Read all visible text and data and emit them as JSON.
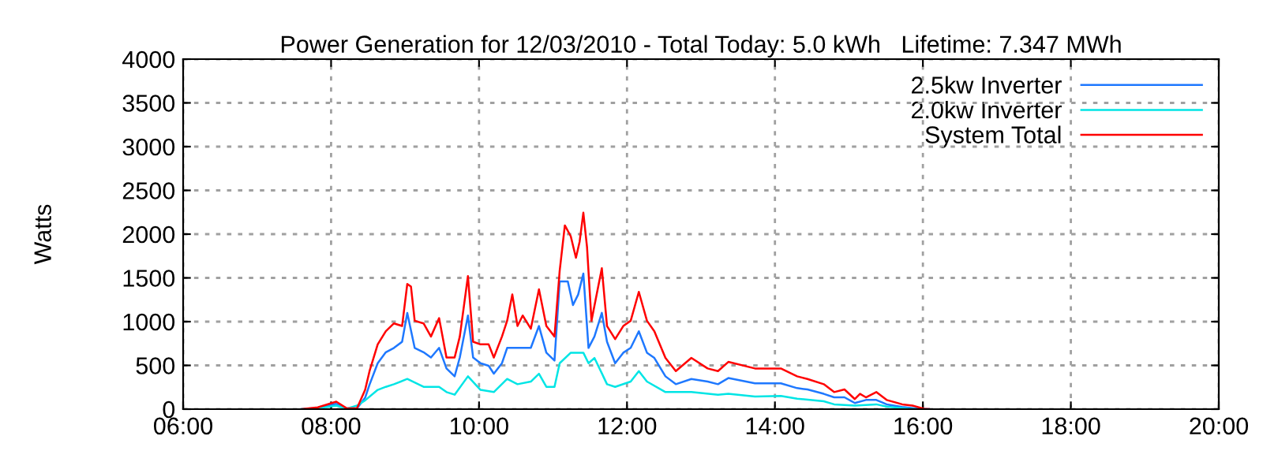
{
  "chart_data": {
    "type": "line",
    "title": "Power Generation for 12/03/2010 - Total Today: 5.0 kWh   Lifetime: 7.347 MWh",
    "ylabel": "Watts",
    "xlim": [
      6,
      20
    ],
    "xticks": [
      {
        "value": 6,
        "label": "06:00"
      },
      {
        "value": 8,
        "label": "08:00"
      },
      {
        "value": 10,
        "label": "10:00"
      },
      {
        "value": 12,
        "label": "12:00"
      },
      {
        "value": 14,
        "label": "14:00"
      },
      {
        "value": 16,
        "label": "16:00"
      },
      {
        "value": 18,
        "label": "18:00"
      },
      {
        "value": 20,
        "label": "20:00"
      }
    ],
    "ylim": [
      0,
      4000
    ],
    "yticks": [
      0,
      500,
      1000,
      1500,
      2000,
      2500,
      3000,
      3500,
      4000
    ],
    "grid": true,
    "legend": "top right",
    "marker": "none",
    "line_style": "solid",
    "series": [
      {
        "name": "2.5kw Inverter",
        "color": "#1e78ff",
        "x": [
          7.6,
          7.82,
          8.07,
          8.21,
          8.35,
          8.46,
          8.52,
          8.63,
          8.74,
          8.85,
          8.96,
          9.03,
          9.13,
          9.25,
          9.35,
          9.46,
          9.56,
          9.67,
          9.74,
          9.85,
          9.92,
          10.02,
          10.13,
          10.2,
          10.31,
          10.38,
          10.52,
          10.7,
          10.81,
          10.91,
          11.02,
          11.09,
          11.2,
          11.27,
          11.34,
          11.41,
          11.48,
          11.56,
          11.66,
          11.73,
          11.84,
          11.95,
          12.05,
          12.16,
          12.27,
          12.37,
          12.52,
          12.66,
          12.87,
          13.09,
          13.23,
          13.37,
          13.73,
          14.08,
          14.3,
          14.44,
          14.66,
          14.8,
          14.94,
          15.08,
          15.23,
          15.37,
          15.51,
          15.72,
          15.94,
          16.08
        ],
        "values": [
          0,
          15,
          60,
          10,
          10,
          130,
          280,
          525,
          650,
          700,
          770,
          1100,
          700,
          650,
          590,
          700,
          465,
          375,
          590,
          1070,
          590,
          525,
          495,
          405,
          525,
          700,
          700,
          700,
          950,
          645,
          555,
          1460,
          1460,
          1190,
          1310,
          1550,
          700,
          830,
          1100,
          770,
          525,
          645,
          700,
          890,
          645,
          585,
          375,
          285,
          345,
          315,
          285,
          355,
          295,
          295,
          240,
          225,
          175,
          135,
          135,
          70,
          105,
          105,
          55,
          25,
          5,
          0
        ]
      },
      {
        "name": "2.0kw Inverter",
        "color": "#00e5e5",
        "x": [
          7.6,
          7.82,
          8.07,
          8.21,
          8.35,
          8.46,
          8.63,
          8.74,
          8.85,
          9.03,
          9.25,
          9.46,
          9.56,
          9.67,
          9.85,
          10.02,
          10.2,
          10.38,
          10.52,
          10.7,
          10.81,
          10.91,
          11.02,
          11.09,
          11.24,
          11.41,
          11.48,
          11.56,
          11.73,
          11.84,
          12.05,
          12.16,
          12.27,
          12.52,
          12.87,
          13.23,
          13.37,
          13.73,
          14.08,
          14.3,
          14.66,
          14.8,
          15.08,
          15.37,
          15.51,
          15.8,
          15.94
        ],
        "values": [
          0,
          10,
          40,
          5,
          40,
          100,
          220,
          255,
          285,
          345,
          255,
          255,
          195,
          165,
          375,
          220,
          195,
          345,
          285,
          315,
          405,
          255,
          255,
          525,
          645,
          645,
          525,
          585,
          285,
          255,
          315,
          435,
          315,
          195,
          195,
          165,
          175,
          145,
          150,
          120,
          90,
          55,
          40,
          55,
          30,
          5,
          0
        ]
      },
      {
        "name": "System Total",
        "color": "#ff0000",
        "x": [
          7.6,
          7.82,
          8.07,
          8.21,
          8.35,
          8.46,
          8.52,
          8.63,
          8.74,
          8.85,
          8.96,
          9.03,
          9.08,
          9.13,
          9.25,
          9.35,
          9.46,
          9.56,
          9.67,
          9.74,
          9.85,
          9.92,
          10.02,
          10.13,
          10.2,
          10.31,
          10.38,
          10.45,
          10.52,
          10.59,
          10.7,
          10.81,
          10.91,
          11.02,
          11.09,
          11.16,
          11.24,
          11.31,
          11.36,
          11.41,
          11.46,
          11.52,
          11.59,
          11.66,
          11.73,
          11.84,
          11.95,
          12.05,
          12.16,
          12.27,
          12.37,
          12.52,
          12.66,
          12.87,
          13.09,
          13.23,
          13.37,
          13.73,
          14.08,
          14.3,
          14.44,
          14.66,
          14.8,
          14.94,
          15.08,
          15.15,
          15.23,
          15.37,
          15.51,
          15.72,
          15.86,
          16.01,
          16.08
        ],
        "values": [
          0,
          20,
          85,
          10,
          10,
          220,
          435,
          740,
          890,
          980,
          950,
          1430,
          1400,
          1010,
          980,
          830,
          1040,
          590,
          590,
          830,
          1520,
          770,
          740,
          740,
          590,
          830,
          1010,
          1310,
          950,
          1070,
          920,
          1370,
          950,
          830,
          1580,
          2100,
          1975,
          1730,
          1915,
          2245,
          1850,
          1010,
          1310,
          1610,
          950,
          800,
          950,
          1010,
          1340,
          1010,
          890,
          585,
          435,
          585,
          465,
          435,
          540,
          465,
          465,
          375,
          345,
          285,
          195,
          225,
          115,
          175,
          135,
          195,
          105,
          55,
          40,
          5,
          0
        ]
      }
    ]
  }
}
